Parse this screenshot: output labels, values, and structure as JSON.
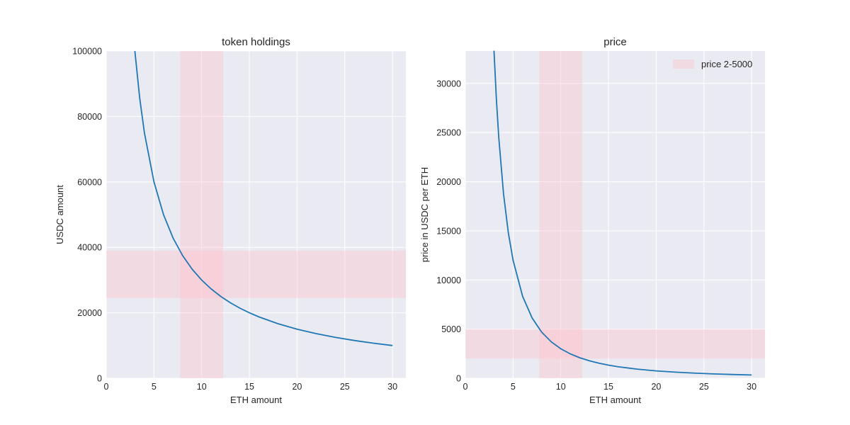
{
  "chart_data": [
    {
      "type": "line",
      "title": "token holdings",
      "xlabel": "ETH amount",
      "ylabel": "USDC amount",
      "xlim": [
        0,
        31.4
      ],
      "ylim": [
        0,
        100000
      ],
      "xticks": [
        0,
        5,
        10,
        15,
        20,
        25,
        30
      ],
      "yticks": [
        0,
        20000,
        40000,
        60000,
        80000,
        100000
      ],
      "x_tick_labels": [
        "0",
        "5",
        "10",
        "15",
        "20",
        "25",
        "30"
      ],
      "y_tick_labels": [
        "0",
        "20000",
        "40000",
        "60000",
        "80000",
        "100000"
      ],
      "series": [
        {
          "color": "#1f77b4",
          "x": [
            3,
            3.5,
            4,
            5,
            6,
            7,
            8,
            9,
            10,
            11,
            12,
            13,
            14,
            15,
            16,
            18,
            20,
            22,
            24,
            26,
            28,
            30
          ],
          "y": [
            100000,
            85714,
            75000,
            60000,
            50000,
            42857,
            37500,
            33333,
            30000,
            27273,
            25000,
            23077,
            21429,
            20000,
            18750,
            16667,
            15000,
            13636,
            12500,
            11538,
            10714,
            10000
          ]
        }
      ],
      "bands": [
        {
          "orientation": "vertical",
          "from": 7.75,
          "to": 12.25,
          "color": "#ffc0cb"
        },
        {
          "orientation": "horizontal",
          "from": 24500,
          "to": 39000,
          "color": "#ffc0cb"
        }
      ],
      "grid": true
    },
    {
      "type": "line",
      "title": "price",
      "xlabel": "ETH amount",
      "ylabel": "price in USDC per ETH",
      "xlim": [
        0,
        31.4
      ],
      "ylim": [
        0,
        33300
      ],
      "xticks": [
        0,
        5,
        10,
        15,
        20,
        25,
        30
      ],
      "yticks": [
        0,
        5000,
        10000,
        15000,
        20000,
        25000,
        30000
      ],
      "x_tick_labels": [
        "0",
        "5",
        "10",
        "15",
        "20",
        "25",
        "30"
      ],
      "y_tick_labels": [
        "0",
        "5000",
        "10000",
        "15000",
        "20000",
        "25000",
        "30000"
      ],
      "series": [
        {
          "color": "#1f77b4",
          "x": [
            3,
            3.25,
            3.5,
            4,
            4.5,
            5,
            6,
            7,
            8,
            9,
            10,
            11,
            12,
            13,
            14,
            15,
            16,
            18,
            20,
            22,
            24,
            26,
            28,
            30
          ],
          "y": [
            33333,
            28402,
            24490,
            18750,
            14815,
            12000,
            8333,
            6122,
            4688,
            3704,
            3000,
            2479,
            2083,
            1775,
            1531,
            1333,
            1172,
            926,
            750,
            620,
            521,
            444,
            383,
            333
          ]
        }
      ],
      "bands": [
        {
          "orientation": "vertical",
          "from": 7.75,
          "to": 12.25,
          "color": "#ffc0cb"
        },
        {
          "orientation": "horizontal",
          "from": 2000,
          "to": 5000,
          "color": "#ffc0cb"
        }
      ],
      "legend": {
        "label": "price 2-5000",
        "position": "upper right"
      },
      "grid": true
    }
  ]
}
